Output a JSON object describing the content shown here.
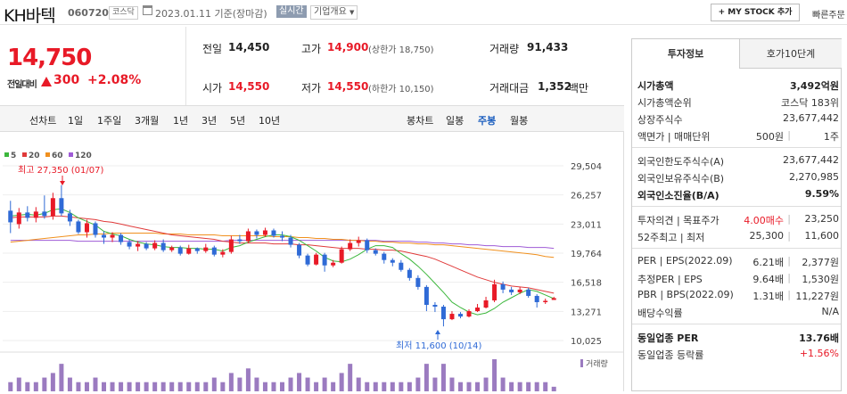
{
  "header": {
    "company": "KH바텍",
    "code": "060720",
    "market": "코스닥",
    "date": "2023.01.11",
    "basis": "기준(장마감)",
    "realtime": "실시간",
    "corp_info": "기업개요",
    "mystock": "+ MY STOCK 추가",
    "quick_order": "빠른주문"
  },
  "price": {
    "current": "14,750",
    "change_label": "전일대비",
    "change": "300",
    "change_pct": "+2.08%"
  },
  "quotes": {
    "prev_label": "전일",
    "prev": "14,450",
    "high_label": "고가",
    "high": "14,900",
    "upper_limit": "(상한가 18,750)",
    "volume_label": "거래량",
    "volume": "91,433",
    "open_label": "시가",
    "open": "14,550",
    "low_label": "저가",
    "low": "14,550",
    "lower_limit": "(하한가 10,150)",
    "amount_label": "거래대금",
    "amount": "1,352",
    "amount_unit": "백만"
  },
  "periods": {
    "title": "선차트",
    "items": [
      "1일",
      "1주일",
      "3개월",
      "1년",
      "3년",
      "5년",
      "10년"
    ],
    "candle_title": "봉차트",
    "candle_items": [
      "일봉",
      "주봉",
      "월봉"
    ],
    "candle_selected": 1
  },
  "chart_data": {
    "type": "candlestick",
    "legend": [
      {
        "name": "5",
        "color": "#3cb73c"
      },
      {
        "name": "20",
        "color": "#e03a3a"
      },
      {
        "name": "60",
        "color": "#f0901e"
      },
      {
        "name": "120",
        "color": "#9f5bd6"
      }
    ],
    "y_ticks": [
      "29,504",
      "26,257",
      "23,011",
      "19,764",
      "16,518",
      "13,271",
      "10,025"
    ],
    "ylim": [
      10025,
      29504
    ],
    "high_annotation": "최고 27,350 (01/07)",
    "low_annotation": "최저 11,600 (10/14)",
    "volume_label": "거래량",
    "candles": [
      [
        24500,
        23200,
        25600,
        22000
      ],
      [
        23000,
        24300,
        24800,
        22500
      ],
      [
        24300,
        23700,
        25000,
        23300
      ],
      [
        23700,
        24400,
        24900,
        23200
      ],
      [
        24400,
        23900,
        26200,
        23600
      ],
      [
        23900,
        25900,
        26500,
        23500
      ],
      [
        25900,
        24200,
        27350,
        23900
      ],
      [
        24200,
        23300,
        24600,
        22800
      ],
      [
        23300,
        22100,
        23500,
        21900
      ],
      [
        22100,
        23100,
        23500,
        21500
      ],
      [
        23100,
        21800,
        23300,
        21500
      ],
      [
        21800,
        21500,
        22200,
        20800
      ],
      [
        21500,
        21800,
        22100,
        21000
      ],
      [
        21800,
        21000,
        22000,
        20700
      ],
      [
        21000,
        20500,
        21300,
        20200
      ],
      [
        20500,
        20800,
        21100,
        20000
      ],
      [
        20800,
        20300,
        21000,
        20100
      ],
      [
        20300,
        20900,
        21200,
        20100
      ],
      [
        20900,
        20100,
        21300,
        19900
      ],
      [
        20100,
        20400,
        20600,
        19900
      ],
      [
        20400,
        19700,
        20600,
        19500
      ],
      [
        19700,
        20300,
        20700,
        19600
      ],
      [
        20300,
        20000,
        20400,
        19700
      ],
      [
        20000,
        20400,
        20800,
        19800
      ],
      [
        20400,
        19600,
        20600,
        19400
      ],
      [
        19600,
        19900,
        20200,
        19300
      ],
      [
        19900,
        21300,
        21700,
        19700
      ],
      [
        21300,
        21100,
        21800,
        20800
      ],
      [
        21100,
        22200,
        22500,
        20900
      ],
      [
        22200,
        21800,
        22400,
        21400
      ],
      [
        21800,
        22300,
        22600,
        21600
      ],
      [
        22300,
        21700,
        22500,
        21500
      ],
      [
        21700,
        21500,
        22200,
        21100
      ],
      [
        21500,
        20700,
        21800,
        20400
      ],
      [
        20700,
        19500,
        20900,
        19200
      ],
      [
        19500,
        18500,
        19700,
        18300
      ],
      [
        18500,
        19600,
        19800,
        18400
      ],
      [
        19600,
        18400,
        19800,
        17700
      ],
      [
        18400,
        18700,
        19000,
        18200
      ],
      [
        18700,
        20200,
        20500,
        18600
      ],
      [
        20200,
        20900,
        21300,
        20000
      ],
      [
        20900,
        21200,
        21600,
        20500
      ],
      [
        21200,
        20100,
        21400,
        19800
      ],
      [
        20100,
        19700,
        20300,
        19500
      ],
      [
        19700,
        19000,
        19900,
        18600
      ],
      [
        19000,
        18700,
        19200,
        18300
      ],
      [
        18700,
        17900,
        19000,
        17700
      ],
      [
        17900,
        17000,
        18100,
        16700
      ],
      [
        17000,
        16000,
        17300,
        15700
      ],
      [
        16000,
        14000,
        16200,
        13300
      ],
      [
        14000,
        13800,
        14300,
        13200
      ],
      [
        13800,
        12400,
        14000,
        11600
      ],
      [
        12400,
        13000,
        13300,
        12300
      ],
      [
        13000,
        12700,
        13200,
        12500
      ],
      [
        12700,
        13300,
        13500,
        12600
      ],
      [
        13300,
        13700,
        14100,
        13200
      ],
      [
        13700,
        14500,
        14900,
        13600
      ],
      [
        14500,
        16300,
        16800,
        14300
      ],
      [
        16300,
        15700,
        16600,
        15300
      ],
      [
        15700,
        15400,
        16000,
        15100
      ],
      [
        15400,
        15700,
        16000,
        15200
      ],
      [
        15700,
        15000,
        15900,
        14800
      ],
      [
        15000,
        14300,
        15200,
        13700
      ],
      [
        14300,
        14450,
        14700,
        14100
      ],
      [
        14550,
        14750,
        14900,
        14550
      ]
    ],
    "ma5": [
      23900,
      24000,
      24100,
      24000,
      24200,
      24600,
      24700,
      24300,
      23700,
      23300,
      22900,
      22200,
      21900,
      21700,
      21300,
      21000,
      20800,
      20700,
      20500,
      20400,
      20400,
      20300,
      20300,
      20200,
      20200,
      20000,
      20400,
      20600,
      21000,
      21300,
      21600,
      21800,
      21800,
      21600,
      21200,
      20600,
      20000,
      19300,
      18900,
      18800,
      19100,
      19600,
      20200,
      20600,
      20600,
      20400,
      19700,
      19100,
      18300,
      17400,
      16400,
      15400,
      14300,
      13700,
      13200,
      12900,
      13100,
      13600,
      14300,
      14800,
      15300,
      15700,
      15500,
      15100,
      14700
    ],
    "ma20": [
      23700,
      23800,
      23800,
      23800,
      23800,
      23900,
      23900,
      23800,
      23700,
      23600,
      23500,
      23300,
      23200,
      23000,
      22800,
      22600,
      22400,
      22200,
      22000,
      21800,
      21700,
      21600,
      21500,
      21400,
      21300,
      21100,
      21000,
      20900,
      20900,
      20900,
      20900,
      20800,
      20800,
      20800,
      20700,
      20700,
      20600,
      20500,
      20400,
      20300,
      20300,
      20300,
      20200,
      20200,
      20100,
      20100,
      20000,
      19800,
      19600,
      19400,
      19100,
      18700,
      18300,
      17900,
      17500,
      17100,
      16800,
      16500,
      16300,
      16100,
      16000,
      15900,
      15700,
      15500,
      15300
    ],
    "ma60": [
      21000,
      21100,
      21200,
      21300,
      21400,
      21500,
      21600,
      21700,
      21800,
      21800,
      21900,
      21900,
      22000,
      22000,
      22000,
      22000,
      22000,
      22000,
      21900,
      21900,
      21900,
      21800,
      21800,
      21800,
      21800,
      21700,
      21700,
      21700,
      21700,
      21700,
      21700,
      21600,
      21600,
      21600,
      21500,
      21500,
      21400,
      21400,
      21300,
      21300,
      21200,
      21200,
      21100,
      21100,
      21000,
      21000,
      20900,
      20900,
      20800,
      20800,
      20700,
      20700,
      20600,
      20500,
      20400,
      20300,
      20200,
      20100,
      20000,
      19900,
      19800,
      19700,
      19600,
      19400,
      19300
    ],
    "ma120": [
      21200,
      21200,
      21200,
      21200,
      21200,
      21200,
      21200,
      21200,
      21100,
      21100,
      21100,
      21100,
      21100,
      21100,
      21100,
      21100,
      21100,
      21100,
      21100,
      21100,
      21100,
      21100,
      21100,
      21100,
      21100,
      21100,
      21200,
      21200,
      21200,
      21200,
      21200,
      21200,
      21200,
      21200,
      21200,
      21200,
      21200,
      21200,
      21200,
      21200,
      21200,
      21200,
      21200,
      21200,
      21100,
      21100,
      21100,
      21100,
      21000,
      21000,
      20900,
      20900,
      20800,
      20800,
      20700,
      20700,
      20600,
      20600,
      20500,
      20500,
      20500,
      20400,
      20400,
      20400,
      20300
    ],
    "volumes": [
      2,
      3,
      2,
      2,
      3,
      4,
      6,
      3,
      2,
      2,
      3,
      2,
      2,
      2,
      2,
      2,
      2,
      2,
      2,
      2,
      2,
      2,
      2,
      2,
      3,
      2,
      4,
      3,
      5,
      3,
      2,
      2,
      2,
      3,
      4,
      3,
      2,
      3,
      2,
      4,
      6,
      3,
      2,
      2,
      2,
      2,
      2,
      2,
      3,
      6,
      3,
      6,
      3,
      2,
      2,
      2,
      3,
      7,
      3,
      2,
      2,
      2,
      2,
      2,
      1
    ]
  },
  "panel": {
    "tab_active": "투자정보",
    "tab_other": "호가10단계",
    "rows1": [
      {
        "l": "시가총액",
        "r": "3,492억원",
        "bold": true
      },
      {
        "l": "시가총액순위",
        "r": "코스닥 183위"
      },
      {
        "l": "상장주식수",
        "r": "23,677,442"
      },
      {
        "l": "액면가",
        "sep": "매매단위",
        "r1": "500원",
        "r": "1주"
      }
    ],
    "rows2": [
      {
        "l": "외국인한도주식수(A)",
        "r": "23,677,442"
      },
      {
        "l": "외국인보유주식수(B)",
        "r": "2,270,985"
      },
      {
        "l": "외국인소진율(B/A)",
        "r": "9.59%",
        "bold": true
      }
    ],
    "rows3": [
      {
        "l": "투자의견",
        "sep": "목표주가",
        "r1": "4.00매수",
        "r": "23,250",
        "r1red": true
      },
      {
        "l": "52주최고",
        "sep": "최저",
        "r1": "25,300",
        "r": "11,600"
      }
    ],
    "rows4": [
      {
        "l": "PER",
        "sep": "EPS(2022.09)",
        "r1": "6.21배",
        "r": "2,377원"
      },
      {
        "l": "추정PER",
        "sep": "EPS",
        "r1": "9.64배",
        "r": "1,530원"
      },
      {
        "l": "PBR",
        "sep": "BPS(2022.09)",
        "r1": "1.31배",
        "r": "11,227원"
      },
      {
        "l": "배당수익률",
        "r": "N/A"
      }
    ],
    "rows5": [
      {
        "l": "동일업종 PER",
        "r": "13.76배",
        "bold": true
      },
      {
        "l": "동일업종 등락률",
        "r": "+1.56%",
        "red": true
      }
    ]
  }
}
